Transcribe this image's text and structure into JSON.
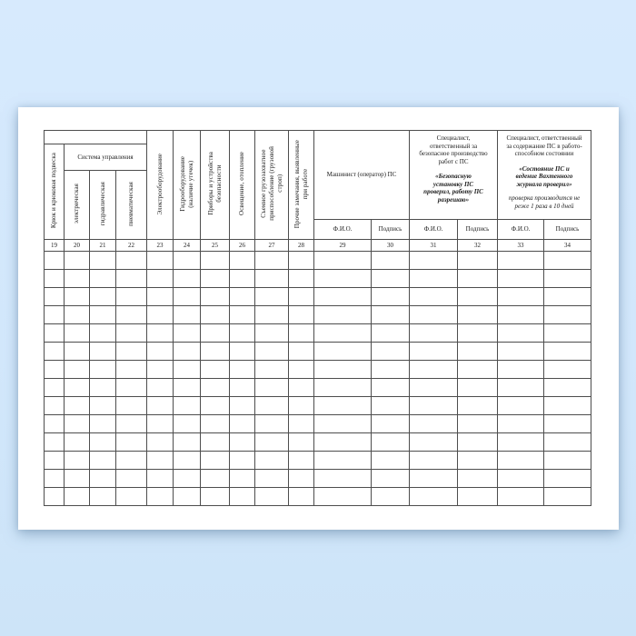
{
  "table": {
    "group_system": "Система управления",
    "columns": {
      "col19": {
        "num": "19",
        "label": "Крюк и крюковая подвеска"
      },
      "col20": {
        "num": "20",
        "label": "электрическая"
      },
      "col21": {
        "num": "21",
        "label": "гидравлическая"
      },
      "col22": {
        "num": "22",
        "label": "пневматическая"
      },
      "col23": {
        "num": "23",
        "label": "Электрооборудование"
      },
      "col24": {
        "num": "24",
        "label": "Гидрооборудование\n(наличие утечек)"
      },
      "col25": {
        "num": "25",
        "label": "Приборы и устройства\nбезопасности"
      },
      "col26": {
        "num": "26",
        "label": "Освещение, отопление"
      },
      "col27": {
        "num": "27",
        "label": "Съемное грузозахватное\nприспособление (грузовой\nстроп)"
      },
      "col28": {
        "num": "28",
        "label": "Прочие замечания, выявленные\nпри работе"
      }
    },
    "group_machinist": {
      "title": "Машинист (оператор) ПС",
      "fio": "Ф.И.О.",
      "sign": "Подпись",
      "num_fio": "29",
      "num_sign": "30"
    },
    "group_spec1": {
      "title": "Специалист,\nответственный за\nбезопасное производство\nработ с ПС",
      "quote": "«Безопасную\nустановку ПС\nпроверил, работу ПС\nразрешаю»",
      "fio": "Ф.И.О.",
      "sign": "Подпись",
      "num_fio": "31",
      "num_sign": "32"
    },
    "group_spec2": {
      "title": "Специалист, ответственный\nза содержание ПС в работо-\nспособном состоянии",
      "quote": "«Состояние ПС и\nведение Вахтенного\nжурнала проверил»",
      "note": "проверка производится не\nреже 1 раза в 10 дней",
      "fio": "Ф.И.О.",
      "sign": "Подпись",
      "num_fio": "33",
      "num_sign": "34"
    },
    "column_numbers": [
      "19",
      "20",
      "21",
      "22",
      "23",
      "24",
      "25",
      "26",
      "27",
      "28",
      "29",
      "30",
      "31",
      "32",
      "33",
      "34"
    ],
    "body": {
      "row_count": 14,
      "col_count": 16
    }
  }
}
